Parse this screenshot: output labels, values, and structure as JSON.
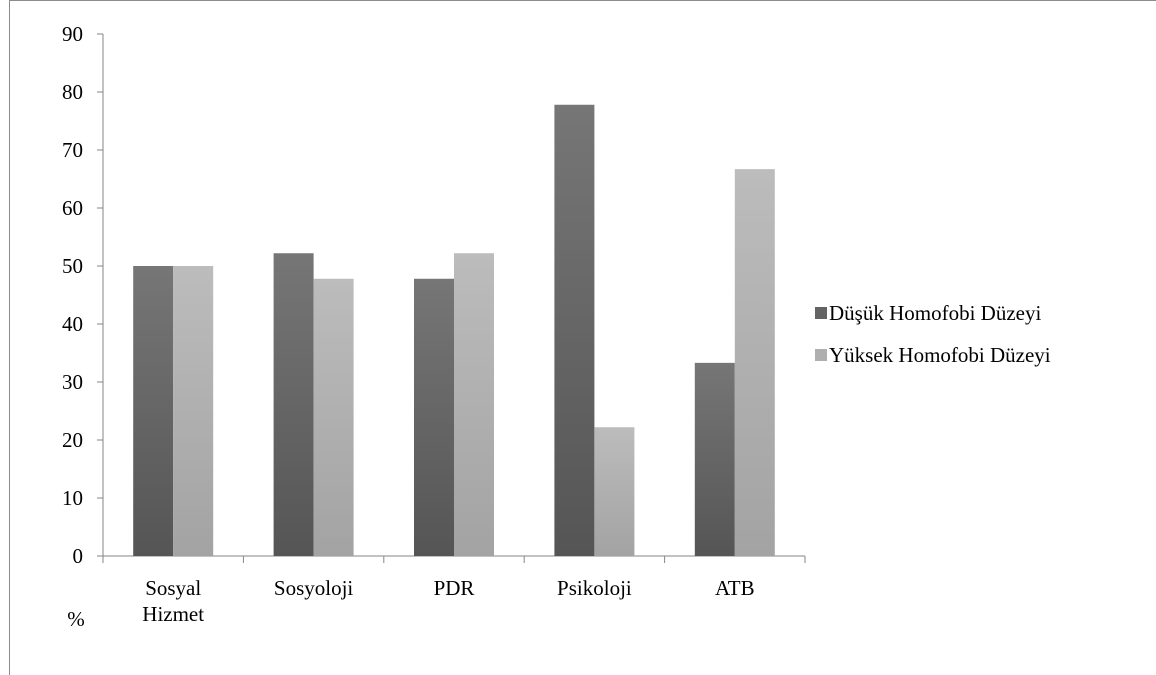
{
  "chart_data": {
    "type": "bar",
    "categories": [
      [
        "Sosyal",
        "Hizmet"
      ],
      [
        "Sosyoloji"
      ],
      [
        "PDR"
      ],
      [
        "Psikoloji"
      ],
      [
        "ATB"
      ]
    ],
    "series": [
      {
        "name": "Düşük Homofobi Düzeyi",
        "values": [
          50,
          52.2,
          47.8,
          77.8,
          33.3
        ],
        "color": "#646464"
      },
      {
        "name": "Yüksek Homofobi Düzeyi",
        "values": [
          50,
          47.8,
          52.2,
          22.2,
          66.7
        ],
        "color": "#afafaf"
      }
    ],
    "yticks": [
      0,
      10,
      20,
      30,
      40,
      50,
      60,
      70,
      80,
      90
    ],
    "ylim": [
      0,
      90
    ],
    "ylabel": "%",
    "xlabel": "",
    "title": "",
    "legend_position": "right",
    "grid": false
  }
}
